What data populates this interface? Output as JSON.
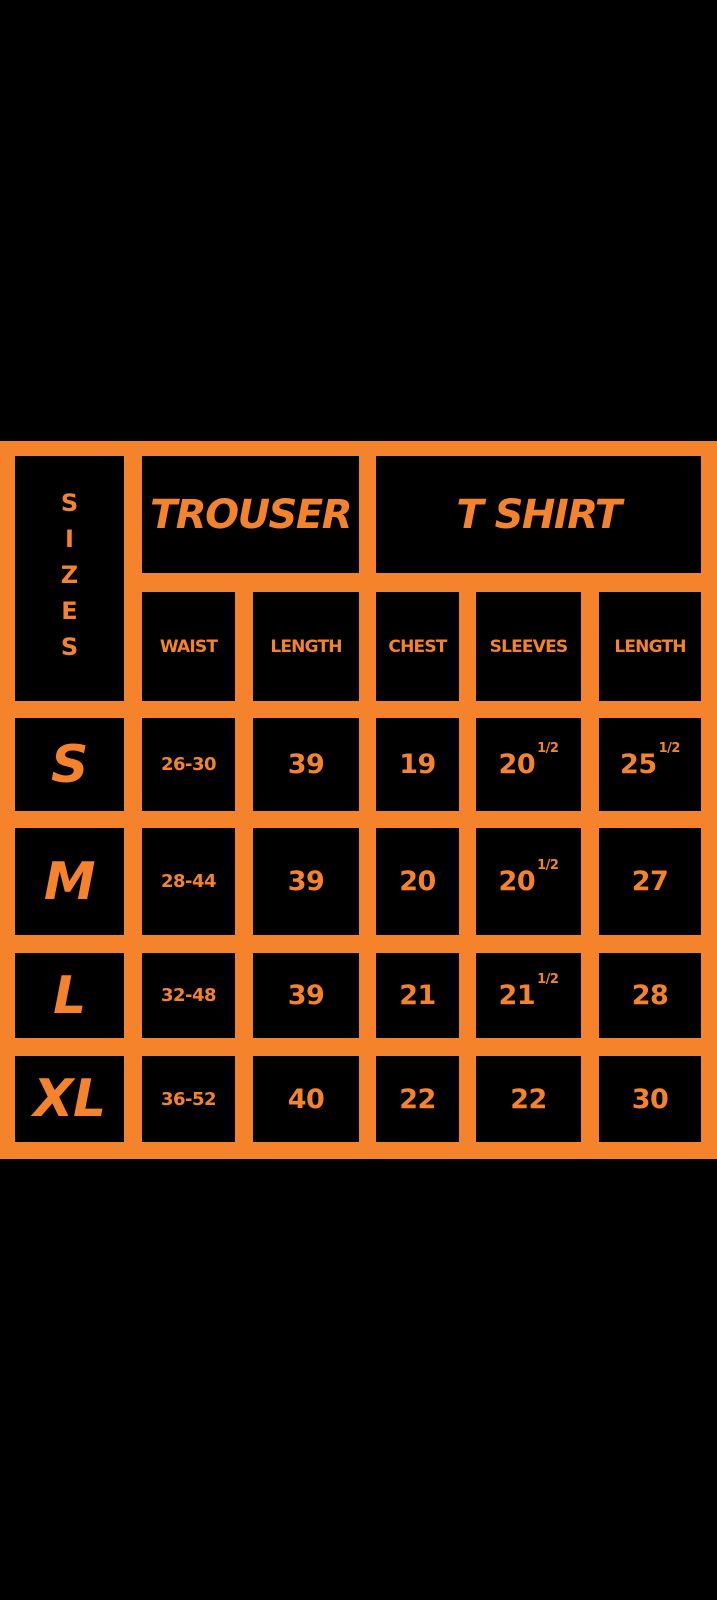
{
  "table": {
    "corner": "SIZES",
    "groups": [
      "TROUSER",
      "T SHIRT"
    ],
    "columns": [
      "WAIST",
      "LENGTH",
      "CHEST",
      "SLEEVES",
      "LENGTH"
    ],
    "rows": [
      {
        "size": "S",
        "cells": [
          "26-30",
          "39",
          "19",
          {
            "text": "20",
            "fraction": "1/2"
          },
          {
            "text": "25",
            "fraction": "1/2"
          }
        ]
      },
      {
        "size": "M",
        "cells": [
          "28-44",
          "39",
          "20",
          {
            "text": "20",
            "fraction": "1/2"
          },
          "27"
        ]
      },
      {
        "size": "L",
        "cells": [
          "32-48",
          "39",
          "21",
          {
            "text": "21",
            "fraction": "1/2"
          },
          "28"
        ]
      },
      {
        "size": "XL",
        "cells": [
          "36-52",
          "40",
          "22",
          "22",
          "30"
        ]
      }
    ]
  }
}
